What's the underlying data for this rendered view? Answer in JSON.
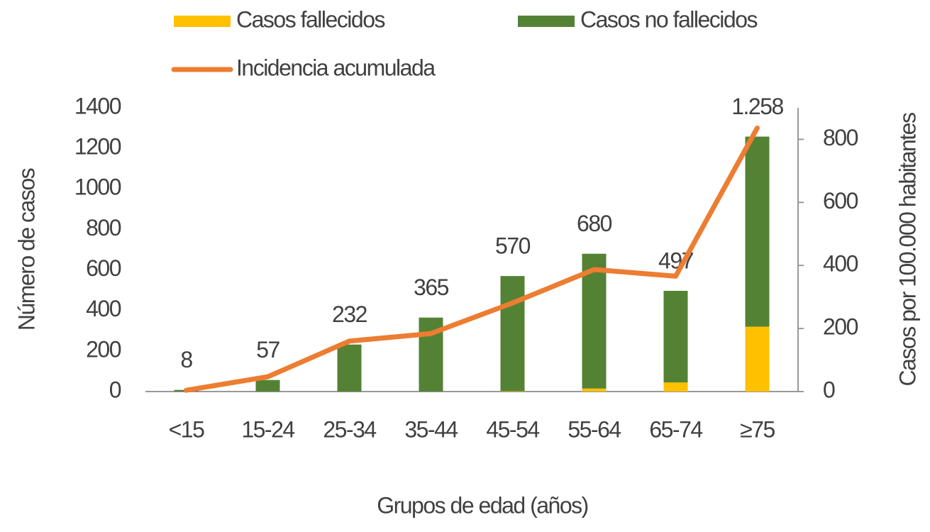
{
  "chart_data": {
    "type": "bar-line",
    "x_label": "Grupos de edad (años)",
    "y_label": "Número de casos",
    "y2_label": "Casos por 100.000 habitantes",
    "categories": [
      "<15",
      "15-24",
      "25-34",
      "35-44",
      "45-54",
      "55-64",
      "65-74",
      "≥75"
    ],
    "series": [
      {
        "name": "Casos fallecidos",
        "color": "#ffc000",
        "values": [
          0,
          0,
          0,
          0,
          2,
          15,
          45,
          320
        ]
      },
      {
        "name": "Casos no fallecidos",
        "color": "#548235",
        "values": [
          8,
          57,
          232,
          365,
          568,
          665,
          452,
          938
        ]
      },
      {
        "name": "Incidencia acumulada",
        "color": "#ed7d31",
        "axis": "y2",
        "values": [
          4,
          47,
          160,
          184,
          281,
          387,
          366,
          836
        ]
      }
    ],
    "totals": [
      8,
      57,
      232,
      365,
      570,
      680,
      497,
      {
        "value": 1258,
        "label": "1.258"
      }
    ],
    "ylim": [
      0,
      1400
    ],
    "yticks": [
      0,
      200,
      400,
      600,
      800,
      1000,
      1200,
      1400
    ],
    "y2lim": [
      0,
      900
    ],
    "y2ticks": [
      0,
      200,
      400,
      600,
      800
    ]
  }
}
